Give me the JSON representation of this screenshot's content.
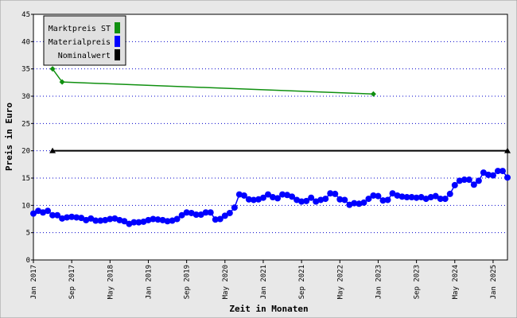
{
  "chart_data": {
    "type": "line",
    "x_label": "Zeit in Monaten",
    "y_label": "Preis in Euro",
    "ylim": [
      0,
      45
    ],
    "yticks": [
      0,
      5,
      10,
      15,
      20,
      25,
      30,
      35,
      40,
      45
    ],
    "grid": true,
    "legend": "upper left",
    "connect_gaps": true,
    "categories": [
      "Jan 2017",
      null,
      null,
      null,
      null,
      null,
      null,
      null,
      "Sep 2017",
      null,
      null,
      null,
      null,
      null,
      null,
      null,
      "May 2018",
      null,
      null,
      null,
      null,
      null,
      null,
      null,
      "Jan 2019",
      null,
      null,
      null,
      null,
      null,
      null,
      null,
      "Sep 2019",
      null,
      null,
      null,
      null,
      null,
      null,
      null,
      "May 2020",
      null,
      null,
      null,
      null,
      null,
      null,
      null,
      "Jan 2021",
      null,
      null,
      null,
      null,
      null,
      null,
      null,
      "Sep 2021",
      null,
      null,
      null,
      null,
      null,
      null,
      null,
      "May 2022",
      null,
      null,
      null,
      null,
      null,
      null,
      null,
      "Jan 2023",
      null,
      null,
      null,
      null,
      null,
      null,
      null,
      "Sep 2023",
      null,
      null,
      null,
      null,
      null,
      null,
      null,
      "May 2024",
      null,
      null,
      null,
      null,
      null,
      null,
      null,
      "Jan 2025",
      null,
      null,
      null
    ],
    "series": [
      {
        "name": "Marktpreis ST",
        "color": "#109010",
        "marker": "diamond",
        "values": [
          null,
          null,
          null,
          null,
          35,
          null,
          32.6,
          null,
          null,
          null,
          null,
          null,
          null,
          null,
          null,
          null,
          null,
          null,
          null,
          null,
          null,
          null,
          null,
          null,
          null,
          null,
          null,
          null,
          null,
          null,
          null,
          null,
          null,
          null,
          null,
          null,
          null,
          null,
          null,
          null,
          null,
          null,
          null,
          null,
          null,
          null,
          null,
          null,
          null,
          null,
          null,
          null,
          null,
          null,
          null,
          null,
          null,
          null,
          null,
          null,
          null,
          null,
          null,
          null,
          null,
          null,
          null,
          null,
          null,
          null,
          null,
          30.4,
          null,
          null,
          null,
          null,
          null,
          null,
          null,
          null,
          null,
          null,
          null,
          null,
          null,
          null,
          null,
          null,
          null,
          null,
          null,
          null,
          null,
          null,
          null,
          null,
          null,
          null,
          null,
          null
        ]
      },
      {
        "name": "Materialpreis",
        "color": "#0000ff",
        "marker": "circle",
        "values": [
          8.5,
          9,
          8.7,
          9,
          8.2,
          8.2,
          7.6,
          7.8,
          7.9,
          7.8,
          7.7,
          7.3,
          7.6,
          7.2,
          7.2,
          7.3,
          7.5,
          7.6,
          7.3,
          7.1,
          6.6,
          6.9,
          6.9,
          7,
          7.3,
          7.5,
          7.4,
          7.3,
          7.1,
          7.2,
          7.5,
          8.2,
          8.7,
          8.6,
          8.3,
          8.3,
          8.7,
          8.7,
          7.4,
          7.5,
          8.1,
          8.6,
          9.6,
          12,
          11.8,
          11.1,
          11,
          11.1,
          11.4,
          12,
          11.5,
          11.3,
          12,
          11.9,
          11.6,
          11,
          10.7,
          10.8,
          11.4,
          10.7,
          11,
          11.2,
          12.2,
          12.1,
          11.1,
          11,
          10.1,
          10.4,
          10.3,
          10.5,
          11.2,
          11.8,
          11.7,
          10.9,
          11,
          12.2,
          11.8,
          11.6,
          11.5,
          11.5,
          11.4,
          11.5,
          11.2,
          11.5,
          11.7,
          11.2,
          11.2,
          12.1,
          13.7,
          14.5,
          14.7,
          14.7,
          13.8,
          14.5,
          16,
          15.6,
          15.5,
          16.3,
          16.3,
          15.1
        ]
      },
      {
        "name": "Nominalwert",
        "color": "#000000",
        "marker": "triangle",
        "values": [
          null,
          null,
          null,
          null,
          20,
          null,
          null,
          null,
          null,
          null,
          null,
          null,
          null,
          null,
          null,
          null,
          null,
          null,
          null,
          null,
          null,
          null,
          null,
          null,
          null,
          null,
          null,
          null,
          null,
          null,
          null,
          null,
          null,
          null,
          null,
          null,
          null,
          null,
          null,
          null,
          null,
          null,
          null,
          null,
          null,
          null,
          null,
          null,
          null,
          null,
          null,
          null,
          null,
          null,
          null,
          null,
          null,
          null,
          null,
          null,
          null,
          null,
          null,
          null,
          null,
          null,
          null,
          null,
          null,
          null,
          null,
          null,
          null,
          null,
          null,
          null,
          null,
          null,
          null,
          null,
          null,
          null,
          null,
          null,
          null,
          null,
          null,
          null,
          null,
          null,
          null,
          null,
          null,
          null,
          null,
          null,
          null,
          null,
          null,
          20
        ]
      }
    ]
  }
}
